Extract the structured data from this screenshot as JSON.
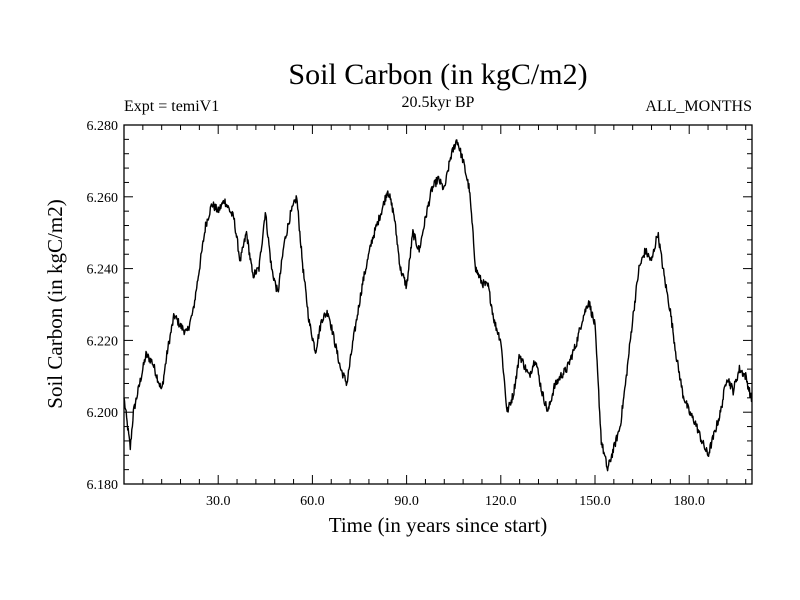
{
  "chart_data": {
    "type": "line",
    "title": "Soil Carbon (in kgC/m2)",
    "subtitle": "20.5kyr BP",
    "left_label": "Expt = temiV1",
    "right_label": "ALL_MONTHS",
    "xlabel": "Time (in years since start)",
    "ylabel": "Soil Carbon (in kgC/m2)",
    "xlim": [
      0,
      200
    ],
    "ylim": [
      6.18,
      6.28
    ],
    "x_ticks": [
      30,
      60,
      90,
      120,
      150,
      180
    ],
    "x_tick_labels": [
      "30.0",
      "60.0",
      "90.0",
      "120.0",
      "150.0",
      "180.0"
    ],
    "y_ticks": [
      6.18,
      6.2,
      6.22,
      6.24,
      6.26,
      6.28
    ],
    "y_tick_labels": [
      "6.180",
      "6.200",
      "6.220",
      "6.240",
      "6.260",
      "6.280"
    ],
    "grid": false,
    "series": [
      {
        "name": "Soil Carbon",
        "color": "#000000",
        "x": [
          0,
          2,
          3,
          5,
          7,
          9,
          12,
          14,
          16,
          18,
          20,
          22,
          24,
          26,
          28,
          30,
          32,
          35,
          37,
          39,
          41,
          43,
          45,
          47,
          49,
          51,
          53,
          55,
          57,
          59,
          61,
          63,
          65,
          67,
          69,
          71,
          73,
          76,
          79,
          82,
          84,
          86,
          88,
          90,
          92,
          94,
          96,
          98,
          100,
          102,
          104,
          106,
          108,
          110,
          112,
          114,
          116,
          118,
          120,
          122,
          124,
          126,
          127,
          129,
          131,
          133,
          135,
          137,
          139,
          141,
          144,
          146,
          148,
          150,
          152,
          154,
          156,
          158,
          160,
          162,
          164,
          166,
          168,
          170,
          172,
          174,
          176,
          178,
          180,
          182,
          184,
          186,
          188,
          190,
          192,
          194,
          196,
          198,
          200
        ],
        "values": [
          6.204,
          6.19,
          6.2,
          6.208,
          6.216,
          6.214,
          6.206,
          6.218,
          6.227,
          6.224,
          6.222,
          6.228,
          6.24,
          6.252,
          6.258,
          6.256,
          6.259,
          6.254,
          6.242,
          6.25,
          6.238,
          6.24,
          6.256,
          6.24,
          6.233,
          6.247,
          6.255,
          6.26,
          6.24,
          6.225,
          6.217,
          6.226,
          6.228,
          6.22,
          6.212,
          6.208,
          6.22,
          6.236,
          6.248,
          6.256,
          6.262,
          6.255,
          6.24,
          6.235,
          6.25,
          6.245,
          6.254,
          6.262,
          6.265,
          6.262,
          6.271,
          6.276,
          6.27,
          6.262,
          6.24,
          6.236,
          6.235,
          6.225,
          6.22,
          6.2,
          6.205,
          6.216,
          6.214,
          6.21,
          6.215,
          6.206,
          6.2,
          6.207,
          6.21,
          6.212,
          6.219,
          6.226,
          6.231,
          6.224,
          6.192,
          6.184,
          6.19,
          6.196,
          6.21,
          6.226,
          6.24,
          6.245,
          6.242,
          6.25,
          6.238,
          6.228,
          6.215,
          6.205,
          6.2,
          6.197,
          6.192,
          6.188,
          6.194,
          6.2,
          6.21,
          6.206,
          6.212,
          6.21,
          6.203
        ]
      }
    ]
  }
}
